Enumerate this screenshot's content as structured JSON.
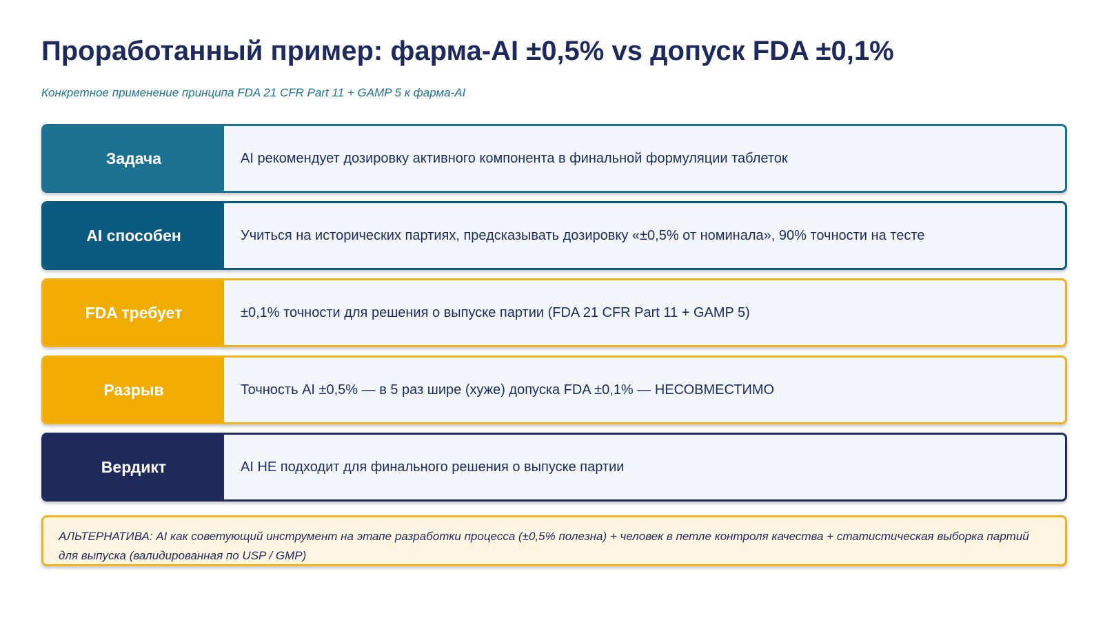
{
  "header": {
    "title": "Проработанный пример: фарма-AI ±0,5% vs допуск FDA ±0,1%",
    "subtitle": "Конкретное применение принципа FDA 21 CFR Part 11 + GAMP 5 к фарма-AI"
  },
  "rows": [
    {
      "label": "Задача",
      "text": "AI рекомендует дозировку активного компонента в финальной формуляции таблеток"
    },
    {
      "label": "AI способен",
      "text": "Учиться на исторических партиях, предсказывать дозировку «±0,5% от номинала», 90% точности на тесте"
    },
    {
      "label": "FDA требует",
      "text": "±0,1% точности для решения о выпуске партии (FDA 21 CFR Part 11 + GAMP 5)"
    },
    {
      "label": "Разрыв",
      "text": "Точность AI ±0,5% — в 5 раз шире (хуже) допуска FDA ±0,1% — НЕСОВМЕСТИМО"
    },
    {
      "label": "Вердикт",
      "text": "AI НЕ подходит для финального решения о выпуске партии"
    }
  ],
  "alternative": {
    "text": "АЛЬТЕРНАТИВА: AI как советующий инструмент на этапе разработки процесса (±0,5% полезна) + человек в петле контроля качества + статистическая выборка партий для выпуска (валидированная по USP / GMP)"
  },
  "colors": {
    "navy": "#1f2a5c",
    "teal": "#1e7291",
    "dark_blue": "#0b5a80",
    "amber": "#f0ac00",
    "row_bg": "#f2f6fa",
    "alt_bg": "#fff5e1"
  }
}
